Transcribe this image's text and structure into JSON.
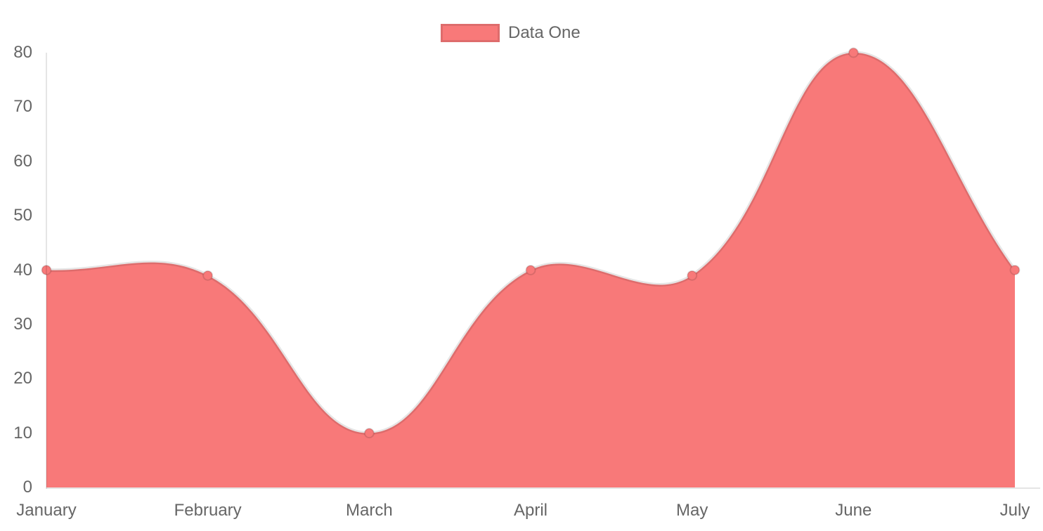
{
  "legend": {
    "label": "Data One",
    "position": "top"
  },
  "colors": {
    "fill": "#f87979",
    "line_border": "rgba(0,0,0,0.10)",
    "point_fill": "#f87979",
    "point_border": "rgba(0,0,0,0.12)",
    "axis_line": "rgba(0,0,0,0.10)",
    "tick_text": "#666666"
  },
  "chart_data": {
    "type": "area",
    "title": "",
    "xlabel": "",
    "ylabel": "",
    "categories": [
      "January",
      "February",
      "March",
      "April",
      "May",
      "June",
      "July"
    ],
    "series": [
      {
        "name": "Data One",
        "values": [
          40,
          39,
          10,
          40,
          39,
          80,
          40
        ]
      }
    ],
    "ylim": [
      0,
      80
    ],
    "y_ticks": [
      0,
      10,
      20,
      30,
      40,
      50,
      60,
      70,
      80
    ],
    "grid": false,
    "legend_position": "top",
    "line_tension": 0.4,
    "curve": "bezier-spline"
  }
}
